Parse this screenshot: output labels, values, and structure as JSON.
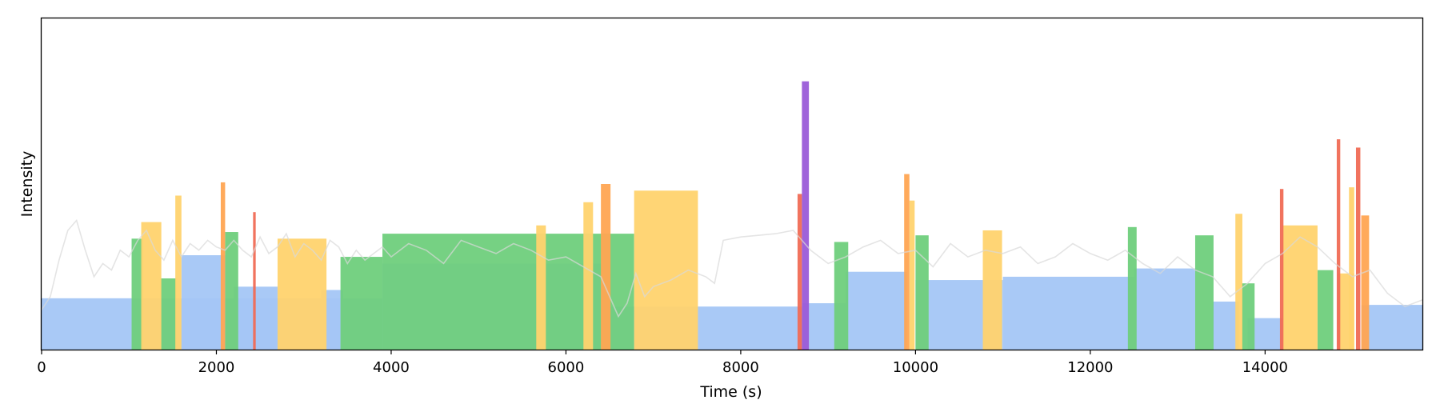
{
  "chart_data": {
    "type": "bar",
    "title": "",
    "xlabel": "Time (s)",
    "ylabel": "Intensity",
    "xlim": [
      0,
      15800
    ],
    "ylim": [
      0,
      100
    ],
    "x_ticks": [
      0,
      2000,
      4000,
      6000,
      8000,
      10000,
      12000,
      14000
    ],
    "y_ticks_shown": false,
    "grid": false,
    "legend": "none",
    "colors": {
      "blue": "#a4c6f5",
      "green": "#6fcf7c",
      "yellow": "#ffd36e",
      "orange": "#ffa552",
      "red": "#f06b55",
      "purple": "#9a5bd8",
      "trace": "#d8d8d8"
    },
    "segments": [
      {
        "x0": 0,
        "x1": 3900,
        "y": 15.5,
        "color": "blue"
      },
      {
        "x0": 1600,
        "x1": 2100,
        "y": 28.5,
        "color": "blue"
      },
      {
        "x0": 2200,
        "x1": 2700,
        "y": 19,
        "color": "blue"
      },
      {
        "x0": 3200,
        "x1": 3450,
        "y": 18,
        "color": "blue"
      },
      {
        "x0": 3900,
        "x1": 6400,
        "y": 26,
        "color": "blue"
      },
      {
        "x0": 5800,
        "x1": 6400,
        "y": 3.5,
        "color": "blue"
      },
      {
        "x0": 6350,
        "x1": 8700,
        "y": 13,
        "color": "blue"
      },
      {
        "x0": 8700,
        "x1": 9200,
        "y": 14,
        "color": "blue"
      },
      {
        "x0": 9200,
        "x1": 9900,
        "y": 23.5,
        "color": "blue"
      },
      {
        "x0": 10000,
        "x1": 11000,
        "y": 21,
        "color": "blue"
      },
      {
        "x0": 11000,
        "x1": 12500,
        "y": 22,
        "color": "blue"
      },
      {
        "x0": 12500,
        "x1": 13200,
        "y": 24.5,
        "color": "blue"
      },
      {
        "x0": 13400,
        "x1": 13700,
        "y": 14.5,
        "color": "blue"
      },
      {
        "x0": 13800,
        "x1": 14200,
        "y": 9.5,
        "color": "blue"
      },
      {
        "x0": 15100,
        "x1": 15800,
        "y": 13.5,
        "color": "blue"
      },
      {
        "x0": 1030,
        "x1": 1160,
        "y": 33.5,
        "color": "green"
      },
      {
        "x0": 1360,
        "x1": 1540,
        "y": 21.5,
        "color": "green"
      },
      {
        "x0": 2100,
        "x1": 2250,
        "y": 35.5,
        "color": "green"
      },
      {
        "x0": 3420,
        "x1": 3900,
        "y": 28,
        "color": "green"
      },
      {
        "x0": 3900,
        "x1": 6780,
        "y": 35,
        "color": "green"
      },
      {
        "x0": 9070,
        "x1": 9230,
        "y": 32.5,
        "color": "green"
      },
      {
        "x0": 10000,
        "x1": 10150,
        "y": 34.5,
        "color": "green"
      },
      {
        "x0": 12430,
        "x1": 12530,
        "y": 37,
        "color": "green"
      },
      {
        "x0": 13200,
        "x1": 13410,
        "y": 34.5,
        "color": "green"
      },
      {
        "x0": 13730,
        "x1": 13880,
        "y": 20,
        "color": "green"
      },
      {
        "x0": 14600,
        "x1": 14780,
        "y": 24,
        "color": "green"
      },
      {
        "x0": 1140,
        "x1": 1370,
        "y": 38.5,
        "color": "yellow"
      },
      {
        "x0": 1530,
        "x1": 1600,
        "y": 46.5,
        "color": "yellow"
      },
      {
        "x0": 2700,
        "x1": 3260,
        "y": 33.5,
        "color": "yellow"
      },
      {
        "x0": 5660,
        "x1": 5770,
        "y": 37.5,
        "color": "yellow"
      },
      {
        "x0": 6200,
        "x1": 6310,
        "y": 44.5,
        "color": "yellow"
      },
      {
        "x0": 6780,
        "x1": 7510,
        "y": 48,
        "color": "yellow"
      },
      {
        "x0": 9930,
        "x1": 9990,
        "y": 45,
        "color": "yellow"
      },
      {
        "x0": 10770,
        "x1": 10990,
        "y": 36,
        "color": "yellow"
      },
      {
        "x0": 13660,
        "x1": 13740,
        "y": 41,
        "color": "yellow"
      },
      {
        "x0": 14200,
        "x1": 14600,
        "y": 37.5,
        "color": "yellow"
      },
      {
        "x0": 14960,
        "x1": 15020,
        "y": 49,
        "color": "yellow"
      },
      {
        "x0": 14830,
        "x1": 15020,
        "y": 23,
        "color": "yellow"
      },
      {
        "x0": 2050,
        "x1": 2100,
        "y": 50.5,
        "color": "orange"
      },
      {
        "x0": 6400,
        "x1": 6510,
        "y": 50,
        "color": "orange"
      },
      {
        "x0": 9870,
        "x1": 9930,
        "y": 53,
        "color": "orange"
      },
      {
        "x0": 15100,
        "x1": 15190,
        "y": 40.5,
        "color": "orange"
      },
      {
        "x0": 2420,
        "x1": 2450,
        "y": 41.5,
        "color": "red"
      },
      {
        "x0": 8650,
        "x1": 8700,
        "y": 47,
        "color": "red"
      },
      {
        "x0": 14170,
        "x1": 14210,
        "y": 48.5,
        "color": "red"
      },
      {
        "x0": 14820,
        "x1": 14860,
        "y": 63.5,
        "color": "red"
      },
      {
        "x0": 15040,
        "x1": 15090,
        "y": 61,
        "color": "red"
      },
      {
        "x0": 8700,
        "x1": 8780,
        "y": 81,
        "color": "purple"
      }
    ],
    "trace": {
      "color": "trace",
      "x": [
        0,
        100,
        200,
        300,
        400,
        500,
        600,
        700,
        800,
        900,
        1000,
        1100,
        1200,
        1300,
        1400,
        1500,
        1600,
        1700,
        1800,
        1900,
        2000,
        2100,
        2200,
        2300,
        2400,
        2500,
        2600,
        2700,
        2800,
        2900,
        3000,
        3100,
        3200,
        3300,
        3400,
        3500,
        3600,
        3700,
        3800,
        3900,
        4000,
        4200,
        4400,
        4600,
        4800,
        5000,
        5200,
        5400,
        5600,
        5800,
        6000,
        6200,
        6400,
        6600,
        6700,
        6800,
        6900,
        7000,
        7200,
        7400,
        7600,
        7700,
        7800,
        8000,
        8200,
        8400,
        8600,
        8700,
        8800,
        9000,
        9200,
        9400,
        9600,
        9800,
        10000,
        10200,
        10400,
        10600,
        10800,
        11000,
        11200,
        11400,
        11600,
        11800,
        12000,
        12200,
        12400,
        12600,
        12800,
        13000,
        13200,
        13400,
        13600,
        13800,
        14000,
        14200,
        14400,
        14600,
        14800,
        15000,
        15200,
        15400,
        15600,
        15800
      ],
      "y": [
        12,
        16,
        27,
        36,
        39,
        30,
        22,
        26,
        24,
        30,
        28,
        33,
        36,
        30,
        27,
        33,
        28,
        32,
        30,
        33,
        31,
        30,
        33,
        30,
        28,
        34,
        29,
        31,
        35,
        28,
        32,
        30,
        27,
        33,
        31,
        26,
        30,
        27,
        29,
        31,
        28,
        32,
        30,
        26,
        33,
        31,
        29,
        32,
        30,
        27,
        28,
        25,
        22,
        10,
        14,
        23,
        16,
        19,
        21,
        24,
        22,
        20,
        33,
        34,
        34.5,
        35,
        36,
        33,
        30,
        26,
        28,
        31,
        33,
        29,
        30,
        25,
        32,
        28,
        30,
        29,
        31,
        26,
        28,
        32,
        29,
        27,
        30,
        26,
        23,
        28,
        24,
        22,
        16,
        20,
        26,
        29,
        34,
        31,
        26,
        22,
        24,
        17,
        13,
        15
      ]
    }
  }
}
